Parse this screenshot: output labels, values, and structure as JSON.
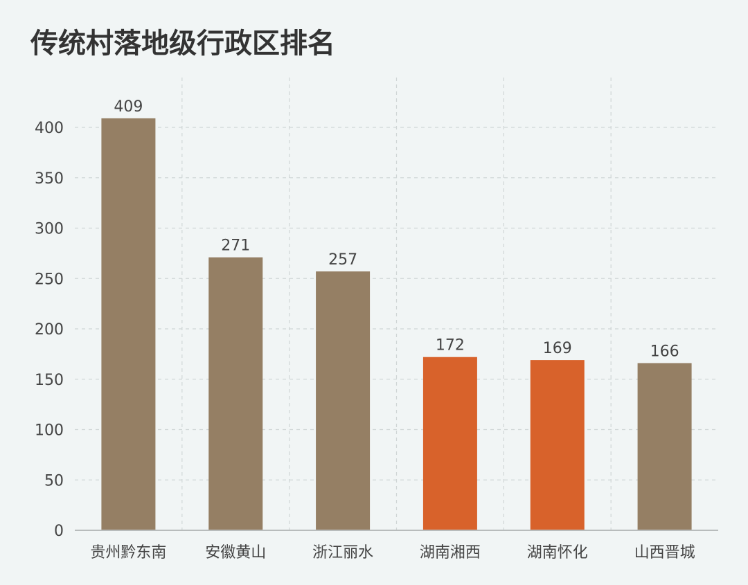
{
  "chart_data": {
    "type": "bar",
    "title": "传统村落地级行政区排名",
    "xlabel": "",
    "ylabel": "",
    "categories": [
      "贵州黔东南",
      "安徽黄山",
      "浙江丽水",
      "湖南湘西",
      "湖南怀化",
      "山西晋城"
    ],
    "values": [
      409,
      271,
      257,
      172,
      169,
      166
    ],
    "highlighted": [
      false,
      false,
      false,
      true,
      true,
      false
    ],
    "ylim": [
      0,
      400
    ],
    "yticks": [
      0,
      50,
      100,
      150,
      200,
      250,
      300,
      350,
      400
    ],
    "grid": true,
    "legend": "none",
    "colors": {
      "bar": "#957f64",
      "highlight": "#d8622b",
      "grid": "#d0d6d6",
      "text": "#444444",
      "title": "#333333",
      "axis": "#b8bcbc",
      "background": "#f1f5f5"
    }
  }
}
